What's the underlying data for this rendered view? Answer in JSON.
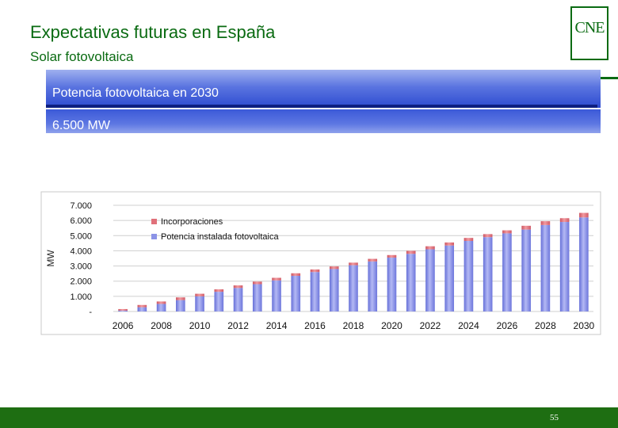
{
  "header": {
    "title": "Expectativas futuras en España",
    "subtitle": "Solar fotovoltaica",
    "logo_text": "CNE"
  },
  "banner": {
    "line1": "Potencia fotovoltaica en 2030",
    "line2": "6.500 MW"
  },
  "colors": {
    "brand_green": "#0a6b12",
    "footer_green": "#1e6e12",
    "bar_installed": "#8b93e6",
    "bar_additions": "#e0707a"
  },
  "chart_data": {
    "type": "bar",
    "stacked": true,
    "categories": [
      "2006",
      "2007",
      "2008",
      "2009",
      "2010",
      "2011",
      "2012",
      "2013",
      "2014",
      "2015",
      "2016",
      "2017",
      "2018",
      "2019",
      "2020",
      "2021",
      "2022",
      "2023",
      "2024",
      "2025",
      "2026",
      "2027",
      "2028",
      "2029",
      "2030"
    ],
    "series": [
      {
        "name": "Potencia instalada fotovoltaica",
        "values": [
          60,
          280,
          500,
          750,
          1000,
          1300,
          1550,
          1800,
          2050,
          2350,
          2600,
          2800,
          3050,
          3300,
          3550,
          3800,
          4100,
          4350,
          4650,
          4900,
          5150,
          5400,
          5700,
          5900,
          6200
        ]
      },
      {
        "name": "Incorporaciones",
        "values": [
          100,
          150,
          160,
          180,
          170,
          160,
          170,
          170,
          170,
          170,
          170,
          170,
          170,
          170,
          170,
          200,
          200,
          200,
          200,
          200,
          200,
          250,
          250,
          250,
          300
        ]
      }
    ],
    "x_tick_labels": [
      "2006",
      "2008",
      "2010",
      "2012",
      "2014",
      "2016",
      "2018",
      "2020",
      "2022",
      "2024",
      "2026",
      "2028",
      "2030"
    ],
    "y_tick_labels": [
      "-",
      "1.000",
      "2.000",
      "3.000",
      "4.000",
      "5.000",
      "6.000",
      "7.000"
    ],
    "ylabel": "MW",
    "xlabel": "",
    "ylim": [
      0,
      7000
    ],
    "grid": true,
    "legend_position": "top-left",
    "legend": [
      "Incorporaciones",
      "Potencia instalada fotovoltaica"
    ]
  },
  "footer": {
    "page_number": "55"
  }
}
